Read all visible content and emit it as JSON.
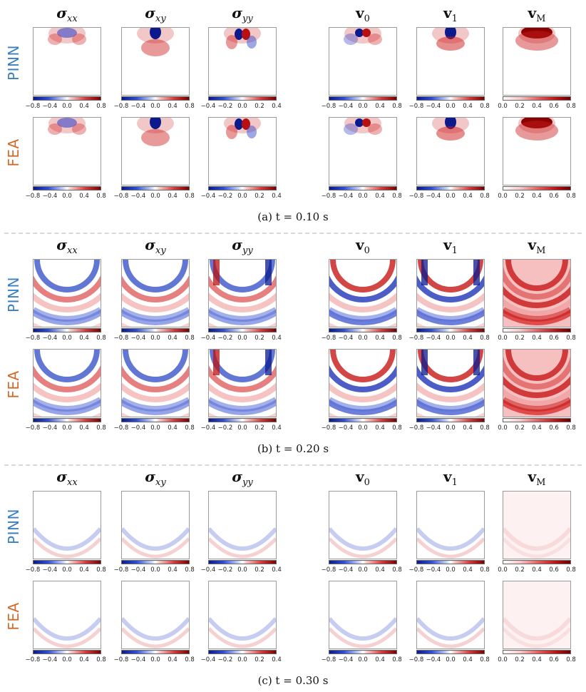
{
  "columns": [
    {
      "main": "σ",
      "sub": "xx"
    },
    {
      "main": "σ",
      "sub": "xy"
    },
    {
      "main": "σ",
      "sub": "yy"
    },
    {
      "main": "v",
      "sub": "0"
    },
    {
      "main": "v",
      "sub": "1"
    },
    {
      "main": "v",
      "sub": "M"
    }
  ],
  "rows": [
    {
      "label": "PINN",
      "color": "#3a7fc0"
    },
    {
      "label": "FEA",
      "color": "#d06a2a"
    }
  ],
  "colorbars": {
    "sym08": [
      "−0.8",
      "−0.4",
      "0.0",
      "0.4",
      "0.8"
    ],
    "sym04": [
      "−0.4",
      "−0.2",
      "0.0",
      "0.2",
      "0.4"
    ],
    "pos08": [
      "0.0",
      "0.2",
      "0.4",
      "0.6",
      "0.8"
    ]
  },
  "colormap": {
    "negative": "#0a1a8c",
    "zero": "#ffffff",
    "positive": "#7a0000"
  },
  "sections": [
    {
      "id": "a",
      "caption": "(a)  t = 0.10 s"
    },
    {
      "id": "b",
      "caption": "(b)  t = 0.20 s"
    },
    {
      "id": "c",
      "caption": "(c)  t = 0.30 s"
    }
  ]
}
